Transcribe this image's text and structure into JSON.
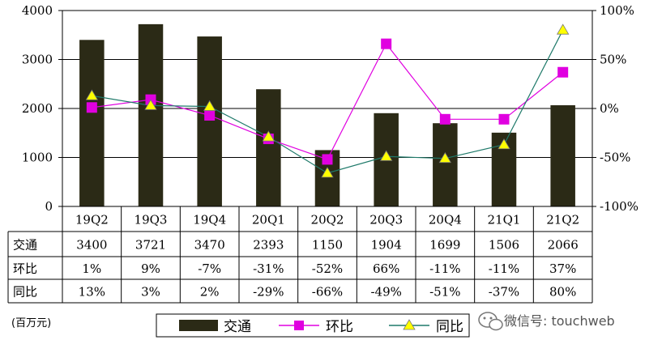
{
  "chart_data": {
    "type": "bar",
    "categories": [
      "19Q2",
      "19Q3",
      "19Q4",
      "20Q1",
      "20Q2",
      "20Q3",
      "20Q4",
      "21Q1",
      "21Q2"
    ],
    "bar_series": {
      "name": "交通",
      "values": [
        3400,
        3721,
        3470,
        2393,
        1150,
        1904,
        1699,
        1506,
        2066
      ],
      "color": "#2b2a16"
    },
    "line_series": [
      {
        "name": "环比",
        "values": [
          1,
          9,
          -7,
          -31,
          -52,
          66,
          -11,
          -11,
          37
        ],
        "labels": [
          "1%",
          "9%",
          "-7%",
          "-31%",
          "-52%",
          "66%",
          "-11%",
          "-11%",
          "37%"
        ],
        "color": "#e000e0",
        "marker": "square"
      },
      {
        "name": "同比",
        "values": [
          13,
          3,
          2,
          -29,
          -66,
          -49,
          -51,
          -37,
          80
        ],
        "labels": [
          "13%",
          "3%",
          "2%",
          "-29%",
          "-66%",
          "-49%",
          "-51%",
          "-37%",
          "80%"
        ],
        "color": "#1f7a6a",
        "marker": "triangle",
        "marker_color": "#ffff00"
      }
    ],
    "y_left": {
      "ylim": [
        0,
        4000
      ],
      "ticks": [
        "0",
        "1000",
        "2000",
        "3000",
        "4000"
      ]
    },
    "y_right": {
      "ylim": [
        -100,
        100
      ],
      "ticks": [
        "-100%",
        "-50%",
        "0%",
        "50%",
        "100%"
      ]
    },
    "unit": "(百万元)",
    "grid": true,
    "legend_position": "bottom"
  },
  "watermark": "微信号: touchweb"
}
